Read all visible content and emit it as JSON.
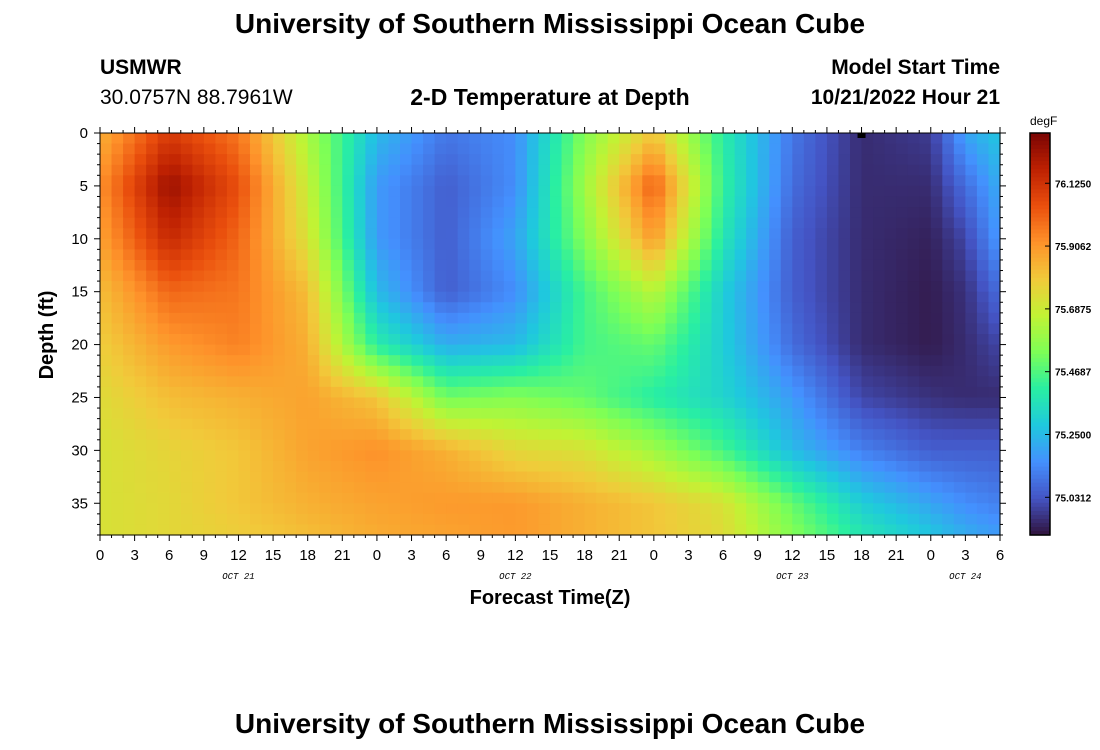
{
  "header": {
    "title": "University of Southern Mississippi Ocean Cube",
    "station": "USMWR",
    "coordinates": "30.0757N  88.7961W",
    "subtitle": "2-D Temperature at Depth",
    "start_label": "Model Start Time",
    "start_value": "10/21/2022 Hour 21"
  },
  "footer": {
    "title": "University of Southern Mississippi Ocean Cube"
  },
  "chart_data": {
    "type": "heatmap",
    "title": "2-D Temperature at Depth",
    "xlabel": "Forecast Time(Z)",
    "ylabel": "Depth (ft)",
    "x_hours_range": [
      0,
      78
    ],
    "x_tick_labels": [
      "0",
      "3",
      "6",
      "9",
      "12",
      "15",
      "18",
      "21",
      "0",
      "3",
      "6",
      "9",
      "12",
      "15",
      "18",
      "21",
      "0",
      "3",
      "6",
      "9",
      "12",
      "15",
      "18",
      "21",
      "0",
      "3",
      "6"
    ],
    "date_labels": [
      {
        "label": "OCT 21",
        "hour": 12
      },
      {
        "label": "OCT 22",
        "hour": 36
      },
      {
        "label": "OCT 23",
        "hour": 60
      },
      {
        "label": "OCT 24",
        "hour": 75
      }
    ],
    "y_ticks": [
      0,
      5,
      10,
      15,
      20,
      25,
      30,
      35
    ],
    "ylim": [
      0,
      38
    ],
    "y_inverted": true,
    "colorbar": {
      "unit": "degF",
      "tick_labels": [
        "76.1250",
        "75.9062",
        "75.6875",
        "75.4687",
        "75.2500",
        "75.0312"
      ],
      "tick_values": [
        76.125,
        75.90625,
        75.6875,
        75.46875,
        75.25,
        75.03125
      ],
      "range": [
        74.9,
        76.3
      ],
      "colors": [
        "#30123b",
        "#4454c4",
        "#4490fe",
        "#1fc8de",
        "#29efa2",
        "#7dff56",
        "#c1f334",
        "#f1ca3a",
        "#fe922a",
        "#ea4f0d",
        "#be2102",
        "#7a0403"
      ]
    },
    "temperature_anchors": {
      "description_hours": [
        0,
        6,
        12,
        18,
        24,
        30,
        36,
        42,
        48,
        54,
        60,
        66,
        72,
        75,
        78
      ],
      "depths_ft": [
        0,
        5,
        10,
        15,
        20,
        25,
        30,
        35,
        38
      ],
      "values_degF": [
        [
          75.85,
          76.1,
          75.97,
          75.62,
          75.25,
          75.1,
          75.15,
          75.55,
          75.8,
          75.4,
          75.1,
          74.95,
          74.98,
          75.2,
          75.28
        ],
        [
          75.92,
          76.24,
          76.05,
          75.68,
          75.18,
          75.05,
          75.15,
          75.6,
          76.02,
          75.42,
          75.08,
          74.95,
          74.95,
          75.08,
          75.22
        ],
        [
          75.88,
          76.15,
          76.0,
          75.72,
          75.18,
          75.05,
          75.2,
          75.55,
          75.9,
          75.38,
          75.05,
          74.95,
          74.93,
          75.0,
          75.18
        ],
        [
          75.82,
          76.0,
          75.97,
          75.82,
          75.25,
          75.05,
          75.15,
          75.45,
          75.65,
          75.3,
          75.05,
          74.95,
          74.92,
          74.96,
          75.08
        ],
        [
          75.78,
          75.9,
          75.95,
          75.85,
          75.4,
          75.22,
          75.25,
          75.45,
          75.5,
          75.3,
          75.08,
          74.95,
          74.92,
          74.95,
          75.0
        ],
        [
          75.74,
          75.82,
          75.85,
          75.88,
          75.8,
          75.52,
          75.55,
          75.5,
          75.4,
          75.32,
          75.18,
          75.0,
          74.96,
          74.95,
          74.95
        ],
        [
          75.72,
          75.76,
          75.8,
          75.88,
          75.92,
          75.85,
          75.75,
          75.72,
          75.6,
          75.45,
          75.25,
          75.12,
          75.05,
          75.05,
          75.05
        ],
        [
          75.72,
          75.75,
          75.8,
          75.85,
          75.88,
          75.9,
          75.9,
          75.85,
          75.8,
          75.72,
          75.5,
          75.3,
          75.2,
          75.15,
          75.12
        ],
        [
          75.72,
          75.75,
          75.78,
          75.82,
          75.86,
          75.88,
          75.9,
          75.85,
          75.8,
          75.74,
          75.55,
          75.38,
          75.28,
          75.22,
          75.18
        ]
      ]
    },
    "marker_hour": 66
  }
}
